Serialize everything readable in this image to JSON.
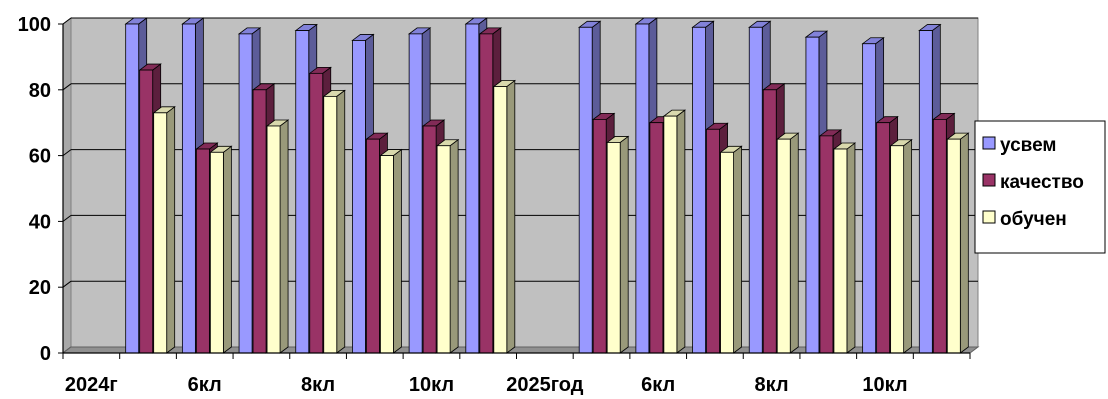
{
  "chart_data": {
    "type": "bar",
    "categories": [
      "2024г",
      "",
      "6кл",
      "",
      "8кл",
      "",
      "10кл",
      "",
      "2025год",
      "",
      "6кл",
      "",
      "8кл",
      "",
      "10кл",
      ""
    ],
    "series": [
      {
        "name": "усвем",
        "color": "#9999ff",
        "values": [
          null,
          100,
          100,
          97,
          98,
          95,
          97,
          100,
          null,
          99,
          100,
          99,
          99,
          96,
          94,
          98
        ]
      },
      {
        "name": "качество",
        "color": "#993366",
        "values": [
          null,
          86,
          62,
          80,
          85,
          65,
          69,
          97,
          null,
          71,
          70,
          68,
          80,
          66,
          70,
          71
        ]
      },
      {
        "name": "обучен",
        "color": "#ffffcc",
        "values": [
          null,
          73,
          61,
          69,
          78,
          60,
          63,
          81,
          null,
          64,
          72,
          61,
          65,
          62,
          63,
          65
        ]
      }
    ],
    "ylim": [
      0,
      100
    ],
    "yticks": [
      0,
      20,
      40,
      60,
      80,
      100
    ],
    "grid": true,
    "legend": "right",
    "plot_background": "#c0c0c0"
  }
}
